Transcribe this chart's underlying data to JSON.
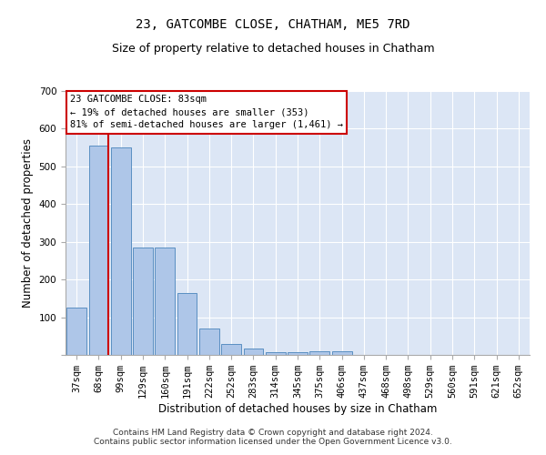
{
  "title": "23, GATCOMBE CLOSE, CHATHAM, ME5 7RD",
  "subtitle": "Size of property relative to detached houses in Chatham",
  "xlabel": "Distribution of detached houses by size in Chatham",
  "ylabel": "Number of detached properties",
  "categories": [
    "37sqm",
    "68sqm",
    "99sqm",
    "129sqm",
    "160sqm",
    "191sqm",
    "222sqm",
    "252sqm",
    "283sqm",
    "314sqm",
    "345sqm",
    "375sqm",
    "406sqm",
    "437sqm",
    "468sqm",
    "498sqm",
    "529sqm",
    "560sqm",
    "591sqm",
    "621sqm",
    "652sqm"
  ],
  "values": [
    125,
    555,
    550,
    285,
    285,
    165,
    70,
    30,
    18,
    7,
    7,
    10,
    10,
    0,
    0,
    0,
    0,
    0,
    0,
    0,
    0
  ],
  "bar_color": "#aec6e8",
  "bar_edge_color": "#5a8fc2",
  "vline_x_index": 1,
  "vline_color": "#cc0000",
  "annotation_text": "23 GATCOMBE CLOSE: 83sqm\n← 19% of detached houses are smaller (353)\n81% of semi-detached houses are larger (1,461) →",
  "annotation_box_color": "#cc0000",
  "background_color": "#dce6f5",
  "grid_color": "#ffffff",
  "ylim": [
    0,
    700
  ],
  "yticks": [
    0,
    100,
    200,
    300,
    400,
    500,
    600,
    700
  ],
  "footer": "Contains HM Land Registry data © Crown copyright and database right 2024.\nContains public sector information licensed under the Open Government Licence v3.0.",
  "title_fontsize": 10,
  "subtitle_fontsize": 9,
  "xlabel_fontsize": 8.5,
  "ylabel_fontsize": 8.5,
  "tick_fontsize": 7.5,
  "annotation_fontsize": 7.5,
  "footer_fontsize": 6.5
}
